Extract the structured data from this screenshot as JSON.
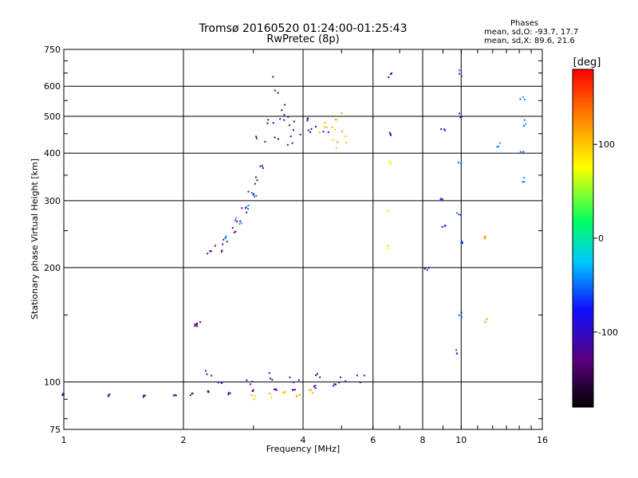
{
  "chart_data": {
    "type": "scatter",
    "title": "Tromsø 20160520 01:24:00-01:25:43",
    "subtitle": "RwPretec (8p)",
    "stats_header": "Phases",
    "stats_line_o": "mean, sd,O: -93.7, 17.7",
    "stats_line_x": "mean, sd,X:  89.6, 21.6",
    "xlabel": "Frequency [MHz]",
    "ylabel": "Stationary phase Virtual Height [km]",
    "xscale": "log",
    "yscale": "log",
    "xlim": [
      1,
      16
    ],
    "ylim": [
      75,
      750
    ],
    "xticks": [
      1,
      2,
      4,
      6,
      8,
      10,
      16
    ],
    "yticks": [
      75,
      100,
      200,
      300,
      400,
      500,
      600,
      750
    ],
    "grid": true,
    "colorbar": {
      "label": "[deg]",
      "range": [
        -180,
        180
      ],
      "ticks": [
        100,
        0,
        -100
      ]
    },
    "traces": [
      {
        "phase": -120,
        "spread": 2,
        "points": [
          [
            1.0,
            93
          ],
          [
            1.3,
            92
          ],
          [
            1.6,
            92
          ],
          [
            1.9,
            92
          ],
          [
            2.1,
            93
          ],
          [
            2.3,
            94
          ],
          [
            2.6,
            93
          ],
          [
            3.0,
            95
          ],
          [
            3.4,
            96
          ],
          [
            3.8,
            95
          ],
          [
            4.3,
            97
          ],
          [
            4.8,
            98
          ]
        ]
      },
      {
        "phase": 110,
        "spread": 3,
        "points": [
          [
            3.0,
            91
          ],
          [
            3.3,
            92
          ],
          [
            3.6,
            93
          ],
          [
            3.9,
            92
          ],
          [
            4.2,
            94
          ]
        ]
      },
      {
        "phase": -110,
        "spread": 6,
        "points": [
          [
            2.3,
            104
          ],
          [
            2.5,
            102
          ],
          [
            2.9,
            101
          ],
          [
            3.3,
            103
          ],
          [
            3.8,
            102
          ],
          [
            4.3,
            103
          ],
          [
            5.0,
            101
          ],
          [
            5.6,
            102
          ]
        ]
      },
      {
        "phase": -130,
        "spread": 3,
        "points": [
          [
            2.15,
            140
          ],
          [
            2.18,
            142
          ]
        ]
      },
      {
        "phase": -115,
        "spread": 5,
        "points": [
          [
            2.35,
            218
          ],
          [
            2.45,
            225
          ],
          [
            2.55,
            235
          ],
          [
            2.65,
            250
          ],
          [
            2.75,
            265
          ],
          [
            2.85,
            285
          ],
          [
            2.95,
            310
          ],
          [
            3.05,
            340
          ],
          [
            3.15,
            365
          ]
        ]
      },
      {
        "phase": -40,
        "spread": 4,
        "points": [
          [
            2.6,
            240
          ],
          [
            2.75,
            265
          ],
          [
            2.9,
            290
          ],
          [
            3.0,
            310
          ]
        ]
      },
      {
        "phase": -120,
        "spread": 12,
        "points": [
          [
            3.2,
            430
          ],
          [
            3.4,
            470
          ],
          [
            3.6,
            490
          ],
          [
            3.8,
            480
          ],
          [
            4.0,
            470
          ],
          [
            4.2,
            460
          ],
          [
            4.4,
            470
          ],
          [
            3.5,
            430
          ],
          [
            3.9,
            440
          ],
          [
            3.7,
            520
          ],
          [
            3.5,
            600
          ]
        ]
      },
      {
        "phase": 110,
        "spread": 10,
        "points": [
          [
            4.6,
            440
          ],
          [
            4.7,
            470
          ],
          [
            4.8,
            500
          ],
          [
            4.9,
            460
          ],
          [
            5.0,
            420
          ]
        ]
      },
      {
        "phase": -120,
        "spread": 3,
        "points": [
          [
            6.6,
            640
          ],
          [
            6.6,
            450
          ]
        ]
      },
      {
        "phase": 80,
        "spread": 3,
        "points": [
          [
            6.6,
            380
          ],
          [
            6.6,
            280
          ],
          [
            6.6,
            225
          ]
        ]
      },
      {
        "phase": -60,
        "spread": 4,
        "points": [
          [
            9.9,
            650
          ],
          [
            9.9,
            500
          ],
          [
            9.9,
            380
          ],
          [
            9.9,
            280
          ],
          [
            9.9,
            230
          ],
          [
            9.9,
            150
          ],
          [
            9.9,
            120
          ]
        ]
      },
      {
        "phase": -80,
        "spread": 3,
        "points": [
          [
            9.0,
            460
          ],
          [
            9.0,
            300
          ],
          [
            9.0,
            255
          ],
          [
            8.2,
            198
          ]
        ]
      },
      {
        "phase": -50,
        "spread": 4,
        "points": [
          [
            14.3,
            560
          ],
          [
            14.3,
            480
          ],
          [
            14.3,
            400
          ],
          [
            14.3,
            340
          ],
          [
            12.5,
            420
          ]
        ]
      },
      {
        "phase": 120,
        "spread": 2,
        "points": [
          [
            11.5,
            240
          ],
          [
            11.5,
            145
          ]
        ]
      }
    ]
  }
}
